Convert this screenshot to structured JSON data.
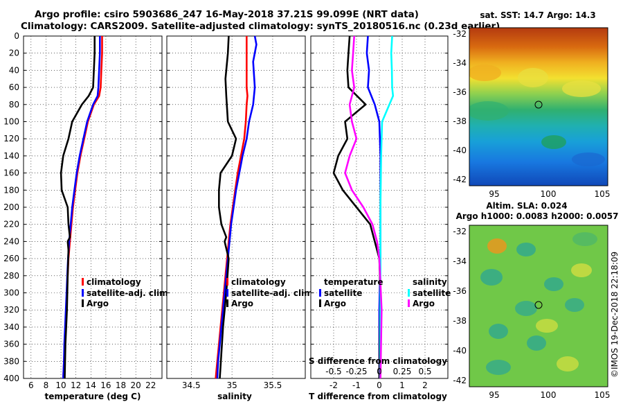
{
  "title_line1": "Argo profile: csiro 5903686_247 16-May-2018 37.21S 99.099E (NRT data)",
  "title_line2": "Climatology: CARS2009. Satellite-adjusted climatology: synTS_20180516.nc (0.23d earlier)",
  "depth_ticks": [
    0,
    20,
    40,
    60,
    80,
    100,
    120,
    140,
    160,
    180,
    200,
    220,
    240,
    260,
    280,
    300,
    320,
    340,
    360,
    380,
    400
  ],
  "colors": {
    "climatology": "#ff0000",
    "satellite_adj": "#0000ff",
    "argo": "#000000",
    "cyan": "#00ffff",
    "magenta": "#ff00ff"
  },
  "chart_data": [
    {
      "type": "line",
      "name": "temperature",
      "xlabel": "temperature (deg C)",
      "xlim": [
        5,
        23.5
      ],
      "ylim": [
        0,
        400
      ],
      "xticks": [
        6,
        8,
        10,
        12,
        14,
        16,
        18,
        20,
        22
      ],
      "xtick_labels": [
        "6",
        "8",
        "10",
        "12",
        "14",
        "16",
        "18",
        "20",
        "22"
      ],
      "legend": [
        "climatology",
        "satellite-adj. clim.",
        "Argo"
      ],
      "series": [
        {
          "name": "climatology",
          "color": "#ff0000",
          "points": [
            [
              15.5,
              0
            ],
            [
              15.5,
              20
            ],
            [
              15.4,
              40
            ],
            [
              15.3,
              60
            ],
            [
              15.1,
              70
            ],
            [
              14.4,
              80
            ],
            [
              13.6,
              100
            ],
            [
              13.1,
              120
            ],
            [
              12.6,
              140
            ],
            [
              12.2,
              160
            ],
            [
              11.9,
              180
            ],
            [
              11.6,
              200
            ],
            [
              11.4,
              220
            ],
            [
              11.2,
              240
            ],
            [
              11.0,
              260
            ],
            [
              10.9,
              280
            ],
            [
              10.8,
              300
            ],
            [
              10.7,
              320
            ],
            [
              10.6,
              340
            ],
            [
              10.5,
              360
            ],
            [
              10.4,
              380
            ],
            [
              10.3,
              400
            ]
          ]
        },
        {
          "name": "satellite-adj. clim.",
          "color": "#0000ff",
          "points": [
            [
              15.2,
              0
            ],
            [
              15.2,
              20
            ],
            [
              15.1,
              40
            ],
            [
              15.0,
              60
            ],
            [
              14.9,
              70
            ],
            [
              14.3,
              80
            ],
            [
              13.5,
              100
            ],
            [
              13.0,
              120
            ],
            [
              12.5,
              140
            ],
            [
              12.1,
              160
            ],
            [
              11.8,
              180
            ],
            [
              11.5,
              200
            ],
            [
              11.3,
              220
            ],
            [
              11.1,
              240
            ],
            [
              10.95,
              260
            ],
            [
              10.85,
              280
            ],
            [
              10.75,
              300
            ],
            [
              10.65,
              320
            ],
            [
              10.55,
              340
            ],
            [
              10.45,
              360
            ],
            [
              10.4,
              380
            ],
            [
              10.3,
              400
            ]
          ]
        },
        {
          "name": "Argo",
          "color": "#000000",
          "points": [
            [
              14.5,
              0
            ],
            [
              14.5,
              20
            ],
            [
              14.4,
              40
            ],
            [
              14.3,
              60
            ],
            [
              13.7,
              70
            ],
            [
              12.8,
              80
            ],
            [
              11.5,
              100
            ],
            [
              11.0,
              120
            ],
            [
              10.3,
              140
            ],
            [
              10.0,
              160
            ],
            [
              10.1,
              180
            ],
            [
              10.9,
              200
            ],
            [
              11.0,
              220
            ],
            [
              11.2,
              235
            ],
            [
              10.9,
              240
            ],
            [
              11.0,
              250
            ],
            [
              10.9,
              280
            ],
            [
              10.8,
              320
            ],
            [
              10.6,
              360
            ],
            [
              10.5,
              400
            ]
          ]
        }
      ]
    },
    {
      "type": "line",
      "name": "salinity",
      "xlabel": "salinity",
      "xlim": [
        34.2,
        35.9
      ],
      "ylim": [
        0,
        400
      ],
      "xticks": [
        34.5,
        35,
        35.5
      ],
      "xtick_labels": [
        "34.5",
        "35",
        "35.5"
      ],
      "legend": [
        "climatology",
        "satellite-adj. clim.",
        "Argo"
      ],
      "series": [
        {
          "name": "climatology",
          "color": "#ff0000",
          "points": [
            [
              35.18,
              0
            ],
            [
              35.18,
              60
            ],
            [
              35.19,
              70
            ],
            [
              35.18,
              80
            ],
            [
              35.17,
              100
            ],
            [
              35.15,
              120
            ],
            [
              35.11,
              140
            ],
            [
              35.07,
              160
            ],
            [
              35.04,
              180
            ],
            [
              35.01,
              200
            ],
            [
              34.98,
              220
            ],
            [
              34.96,
              240
            ],
            [
              34.94,
              260
            ],
            [
              34.92,
              280
            ],
            [
              34.9,
              300
            ],
            [
              34.88,
              320
            ],
            [
              34.86,
              340
            ],
            [
              34.84,
              360
            ],
            [
              34.82,
              380
            ],
            [
              34.8,
              400
            ]
          ]
        },
        {
          "name": "satellite-adj. clim.",
          "color": "#0000ff",
          "points": [
            [
              35.28,
              0
            ],
            [
              35.3,
              10
            ],
            [
              35.26,
              30
            ],
            [
              35.28,
              60
            ],
            [
              35.26,
              80
            ],
            [
              35.21,
              100
            ],
            [
              35.18,
              120
            ],
            [
              35.13,
              140
            ],
            [
              35.09,
              160
            ],
            [
              35.05,
              180
            ],
            [
              35.02,
              200
            ],
            [
              34.99,
              220
            ],
            [
              34.97,
              240
            ],
            [
              34.95,
              260
            ],
            [
              34.93,
              280
            ],
            [
              34.91,
              300
            ],
            [
              34.89,
              320
            ],
            [
              34.87,
              340
            ],
            [
              34.85,
              360
            ],
            [
              34.83,
              380
            ],
            [
              34.82,
              400
            ]
          ]
        },
        {
          "name": "Argo",
          "color": "#000000",
          "points": [
            [
              34.96,
              0
            ],
            [
              34.95,
              20
            ],
            [
              34.92,
              50
            ],
            [
              34.93,
              70
            ],
            [
              34.95,
              100
            ],
            [
              35.05,
              120
            ],
            [
              35.0,
              140
            ],
            [
              34.86,
              160
            ],
            [
              34.84,
              180
            ],
            [
              34.84,
              200
            ],
            [
              34.87,
              220
            ],
            [
              34.93,
              235
            ],
            [
              34.91,
              240
            ],
            [
              34.96,
              260
            ],
            [
              34.93,
              300
            ],
            [
              34.89,
              340
            ],
            [
              34.85,
              400
            ]
          ]
        }
      ]
    },
    {
      "type": "line",
      "name": "difference",
      "xlabel": "T difference from climatology",
      "top_axis_label": "S difference from climatology",
      "xlim": [
        -3,
        3
      ],
      "ylim": [
        0,
        400
      ],
      "xticks": [
        -2,
        -1,
        0,
        1,
        2
      ],
      "xtick_labels": [
        "-2",
        "-1",
        "0",
        "1",
        "2"
      ],
      "s_ticks": [
        -0.5,
        -0.25,
        0,
        0.25,
        0.5
      ],
      "s_tick_labels": [
        "-0.5",
        "-0.25",
        "0",
        "0.25",
        "0.5"
      ],
      "legend_temperature": {
        "title": "temperature",
        "items": [
          "satellite",
          "Argo"
        ]
      },
      "legend_salinity": {
        "title": "salinity",
        "items": [
          "satellite",
          "Argo"
        ]
      },
      "series": [
        {
          "name": "T satellite",
          "color": "#0000ff",
          "points": [
            [
              -0.5,
              0
            ],
            [
              -0.55,
              20
            ],
            [
              -0.45,
              40
            ],
            [
              -0.5,
              60
            ],
            [
              -0.2,
              80
            ],
            [
              0.0,
              100
            ],
            [
              0.05,
              140
            ],
            [
              0.05,
              200
            ],
            [
              0.05,
              260
            ],
            [
              0.0,
              320
            ],
            [
              0.0,
              400
            ]
          ]
        },
        {
          "name": "T Argo",
          "color": "#000000",
          "points": [
            [
              -1.3,
              0
            ],
            [
              -1.35,
              20
            ],
            [
              -1.4,
              40
            ],
            [
              -1.35,
              60
            ],
            [
              -0.6,
              80
            ],
            [
              -1.5,
              100
            ],
            [
              -1.4,
              120
            ],
            [
              -1.8,
              140
            ],
            [
              -2.0,
              160
            ],
            [
              -1.6,
              180
            ],
            [
              -1.0,
              200
            ],
            [
              -0.4,
              220
            ],
            [
              -0.2,
              240
            ],
            [
              0.0,
              260
            ],
            [
              0.05,
              300
            ],
            [
              0.0,
              400
            ]
          ]
        },
        {
          "name": "S satellite",
          "color": "#00ffff",
          "points": [
            [
              0.56,
              0
            ],
            [
              0.52,
              20
            ],
            [
              0.55,
              40
            ],
            [
              0.56,
              60
            ],
            [
              0.6,
              70
            ],
            [
              0.12,
              100
            ],
            [
              0.08,
              140
            ],
            [
              0.05,
              200
            ],
            [
              0.05,
              300
            ],
            [
              0.04,
              400
            ]
          ]
        },
        {
          "name": "S Argo",
          "color": "#ff00ff",
          "points": [
            [
              -1.1,
              0
            ],
            [
              -1.15,
              20
            ],
            [
              -1.2,
              40
            ],
            [
              -1.1,
              60
            ],
            [
              -1.3,
              80
            ],
            [
              -1.2,
              100
            ],
            [
              -1.0,
              120
            ],
            [
              -1.3,
              140
            ],
            [
              -1.5,
              160
            ],
            [
              -1.2,
              180
            ],
            [
              -0.7,
              200
            ],
            [
              -0.3,
              220
            ],
            [
              -0.1,
              240
            ],
            [
              0.0,
              260
            ],
            [
              0.1,
              320
            ],
            [
              0.05,
              400
            ]
          ]
        }
      ]
    }
  ],
  "sst_map": {
    "title": "sat. SST: 14.7 Argo: 14.3",
    "lat_ticks": [
      "-32",
      "-34",
      "-36",
      "-38",
      "-40",
      "-42"
    ],
    "lon_ticks": [
      "95",
      "100",
      "105"
    ]
  },
  "sla_map": {
    "title_line1": "Altim. SLA: 0.024",
    "title_line2": "Argo h1000: 0.0083 h2000: 0.0057",
    "lat_ticks": [
      "-32",
      "-34",
      "-36",
      "-38",
      "-40",
      "-42"
    ],
    "lon_ticks": [
      "95",
      "100",
      "105"
    ]
  },
  "credit": "©IMOS 19-Dec-2018 22:18:09"
}
